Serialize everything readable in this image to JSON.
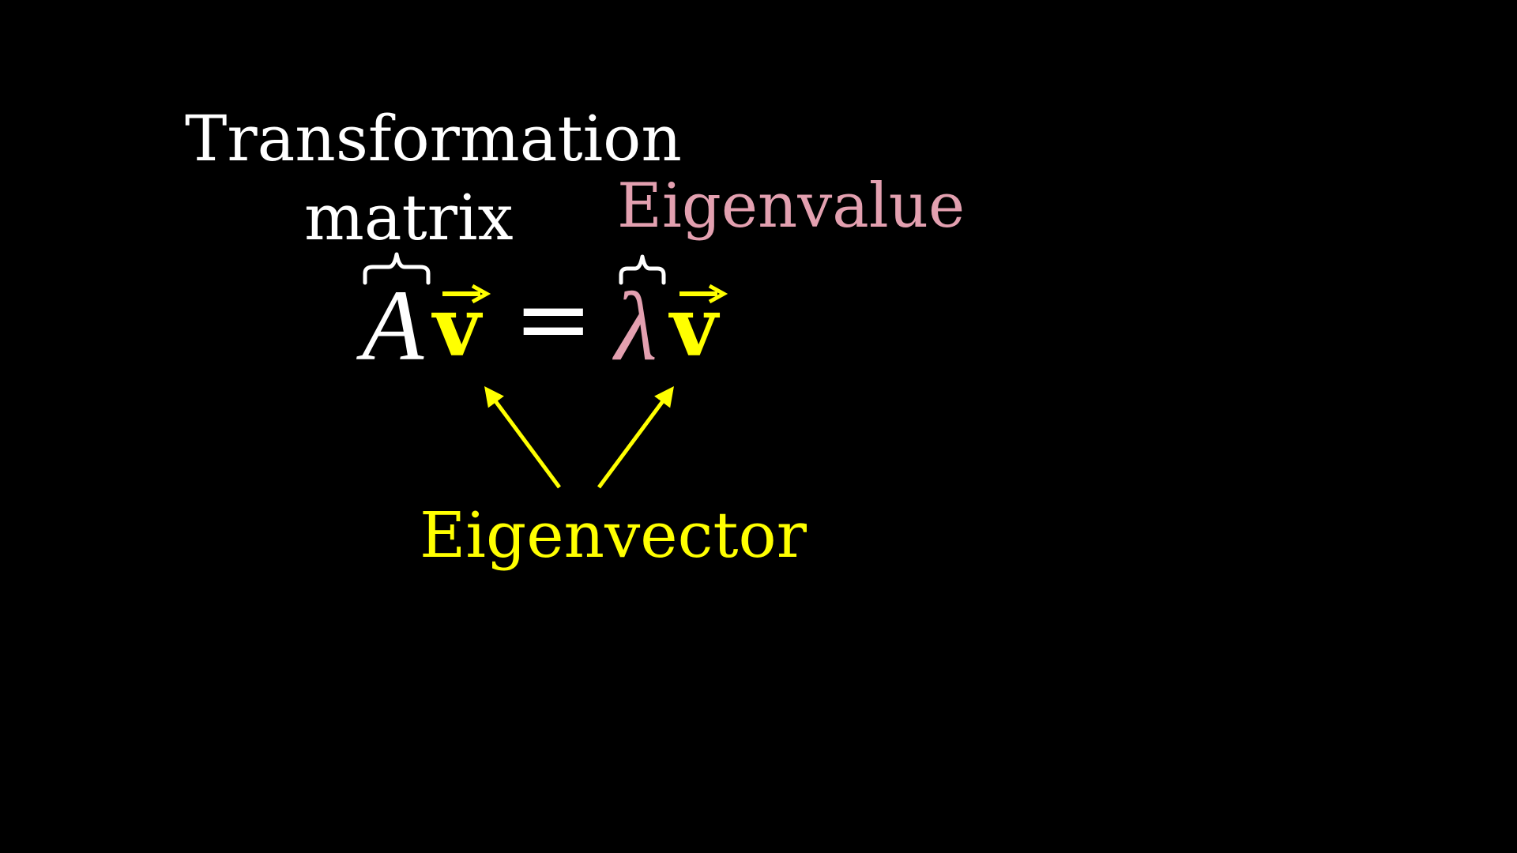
{
  "labels": {
    "transformation_line1": "Transformation",
    "transformation_line2": "matrix",
    "eigenvalue": "Eigenvalue",
    "eigenvector": "Eigenvector"
  },
  "equation": {
    "matrix_symbol": "A",
    "vector_symbol": "v",
    "equals": "=",
    "lambda_symbol": "λ"
  },
  "colors": {
    "background": "#000000",
    "matrix": "#ffffff",
    "vector": "#ffff00",
    "eigenvalue": "#e3a0b0"
  }
}
